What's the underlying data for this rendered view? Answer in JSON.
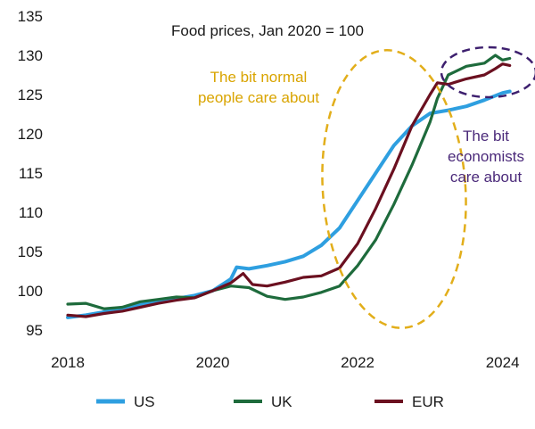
{
  "chart_data": {
    "type": "line",
    "title": "Food prices, Jan 2020 = 100",
    "xlabel": "",
    "ylabel": "",
    "xlim": [
      2018.0,
      2024.3
    ],
    "ylim": [
      95,
      135
    ],
    "x_ticks": [
      {
        "value": 2018,
        "label": "2018"
      },
      {
        "value": 2020,
        "label": "2020"
      },
      {
        "value": 2022,
        "label": "2022"
      },
      {
        "value": 2024,
        "label": "2024"
      }
    ],
    "y_ticks": [
      {
        "value": 95,
        "label": "95"
      },
      {
        "value": 100,
        "label": "100"
      },
      {
        "value": 105,
        "label": "105"
      },
      {
        "value": 110,
        "label": "110"
      },
      {
        "value": 115,
        "label": "115"
      },
      {
        "value": 120,
        "label": "120"
      },
      {
        "value": 125,
        "label": "125"
      },
      {
        "value": 130,
        "label": "130"
      },
      {
        "value": 135,
        "label": "135"
      }
    ],
    "grid": false,
    "legend_position": "bottom",
    "series": [
      {
        "name": "US",
        "color": "#2e9fe0",
        "x": [
          2018.0,
          2018.25,
          2018.5,
          2018.75,
          2019.0,
          2019.25,
          2019.5,
          2019.75,
          2020.0,
          2020.25,
          2020.33,
          2020.5,
          2020.75,
          2021.0,
          2021.25,
          2021.5,
          2021.75,
          2022.0,
          2022.25,
          2022.5,
          2022.75,
          2023.0,
          2023.25,
          2023.5,
          2023.75,
          2024.0,
          2024.1
        ],
        "y": [
          96.6,
          96.9,
          97.3,
          97.8,
          98.3,
          98.6,
          99.0,
          99.4,
          100.0,
          101.5,
          103.0,
          102.8,
          103.2,
          103.7,
          104.4,
          105.8,
          108.0,
          111.5,
          115.0,
          118.5,
          121.0,
          122.6,
          123.0,
          123.5,
          124.3,
          125.2,
          125.4
        ]
      },
      {
        "name": "UK",
        "color": "#1e6b3c",
        "x": [
          2018.0,
          2018.25,
          2018.5,
          2018.75,
          2019.0,
          2019.25,
          2019.5,
          2019.75,
          2020.0,
          2020.25,
          2020.5,
          2020.75,
          2021.0,
          2021.25,
          2021.5,
          2021.75,
          2022.0,
          2022.25,
          2022.5,
          2022.75,
          2023.0,
          2023.1,
          2023.25,
          2023.5,
          2023.75,
          2023.9,
          2024.0,
          2024.1
        ],
        "y": [
          98.3,
          98.4,
          97.7,
          97.9,
          98.6,
          98.9,
          99.2,
          99.1,
          100.0,
          100.6,
          100.4,
          99.3,
          98.9,
          99.2,
          99.8,
          100.6,
          103.2,
          106.5,
          111.0,
          116.0,
          121.5,
          124.5,
          127.5,
          128.6,
          129.0,
          130.0,
          129.4,
          129.6
        ]
      },
      {
        "name": "EUR",
        "color": "#6b1020",
        "x": [
          2018.0,
          2018.25,
          2018.5,
          2018.75,
          2019.0,
          2019.25,
          2019.5,
          2019.75,
          2020.0,
          2020.25,
          2020.42,
          2020.55,
          2020.75,
          2021.0,
          2021.25,
          2021.5,
          2021.75,
          2022.0,
          2022.25,
          2022.5,
          2022.75,
          2023.0,
          2023.1,
          2023.25,
          2023.5,
          2023.75,
          2023.9,
          2024.0,
          2024.1
        ],
        "y": [
          96.9,
          96.7,
          97.1,
          97.4,
          97.9,
          98.4,
          98.8,
          99.1,
          100.0,
          101.0,
          102.2,
          100.8,
          100.6,
          101.1,
          101.7,
          101.9,
          102.9,
          106.0,
          110.5,
          115.5,
          121.0,
          125.0,
          126.5,
          126.3,
          127.0,
          127.5,
          128.3,
          128.9,
          128.7
        ]
      }
    ],
    "annotations": [
      {
        "id": "normal",
        "lines": [
          "The bit normal",
          "people care about"
        ],
        "color": "#d9a400"
      },
      {
        "id": "economists",
        "lines": [
          "The bit",
          "economists",
          "care about"
        ],
        "color": "#4b2a7a"
      }
    ]
  }
}
